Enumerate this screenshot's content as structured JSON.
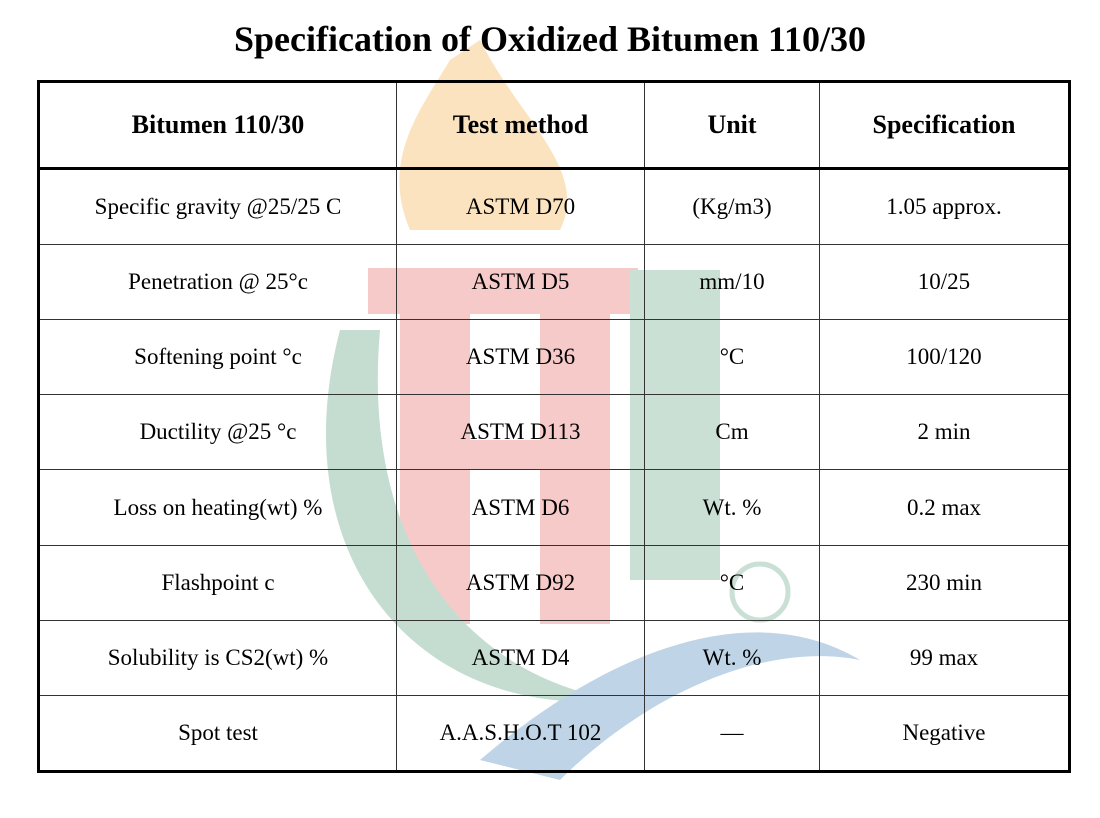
{
  "header": {
    "title": "Specification of Oxidized Bitumen 110/30"
  },
  "table": {
    "columns": [
      "Bitumen 110/30",
      "Test method",
      "Unit",
      "Specification"
    ],
    "rows": [
      [
        "Specific gravity @25/25 C",
        "ASTM D70",
        "(Kg/m3)",
        "1.05 approx."
      ],
      [
        "Penetration @ 25°c",
        "ASTM  D5",
        "mm/10",
        "10/25"
      ],
      [
        "Softening point °c",
        "ASTM  D36",
        "°C",
        "100/120"
      ],
      [
        "Ductility @25 °c",
        "ASTM  D113",
        "Cm",
        "2 min"
      ],
      [
        "Loss on heating(wt) %",
        "ASTM  D6",
        "Wt. %",
        "0.2 max"
      ],
      [
        "Flashpoint c",
        "ASTM D92",
        "°C",
        "230 min"
      ],
      [
        "Solubility is CS2(wt) %",
        "ASTM  D4",
        "Wt. %",
        "99 max"
      ],
      [
        "Spot test",
        "A.A.S.H.O.T 102",
        "—",
        "Negative"
      ]
    ]
  }
}
